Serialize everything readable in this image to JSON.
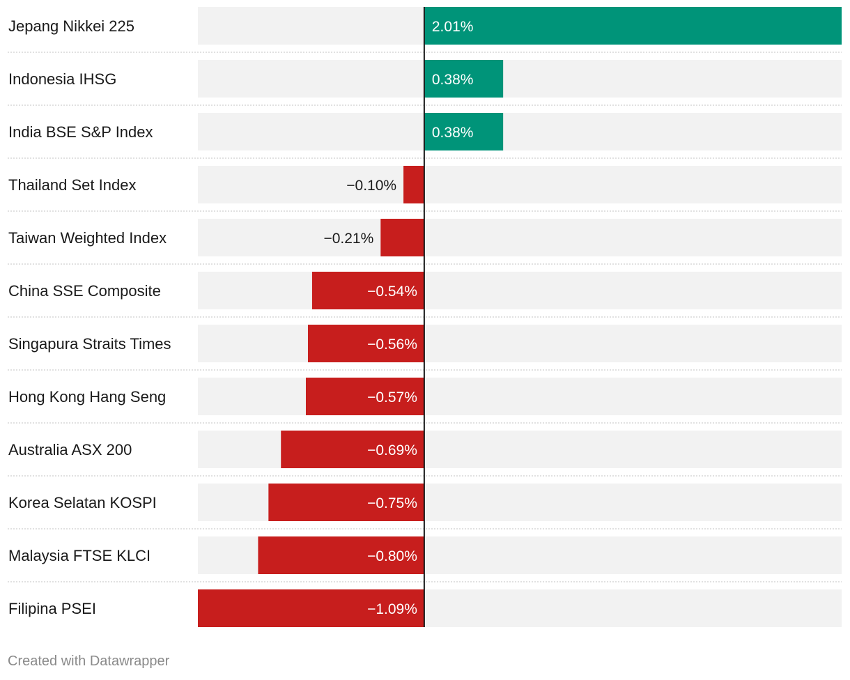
{
  "chart_data": {
    "type": "bar",
    "orientation": "horizontal",
    "categories": [
      "Jepang Nikkei 225",
      "Indonesia IHSG",
      "India BSE S&P Index",
      "Thailand Set Index",
      "Taiwan Weighted Index",
      "China SSE Composite",
      "Singapura Straits Times",
      "Hong Kong Hang Seng",
      "Australia ASX 200",
      "Korea Selatan KOSPI",
      "Malaysia FTSE KLCI",
      "Filipina PSEI"
    ],
    "values": [
      2.01,
      0.38,
      0.38,
      -0.1,
      -0.21,
      -0.54,
      -0.56,
      -0.57,
      -0.69,
      -0.75,
      -0.8,
      -1.09
    ],
    "value_labels": [
      "2.01%",
      "0.38%",
      "0.38%",
      "−0.10%",
      "−0.21%",
      "−0.54%",
      "−0.56%",
      "−0.57%",
      "−0.69%",
      "−0.75%",
      "−0.80%",
      "−1.09%"
    ],
    "xlim": [
      -1.09,
      2.01
    ],
    "title": "",
    "xlabel": "",
    "ylabel": ""
  },
  "colors": {
    "positive": "#009479",
    "negative": "#c71e1d",
    "track": "#f2f2f2",
    "zero_line": "#1a1a1a",
    "separator": "#cfcfcf"
  },
  "footer": {
    "credit": "Created with Datawrapper"
  }
}
